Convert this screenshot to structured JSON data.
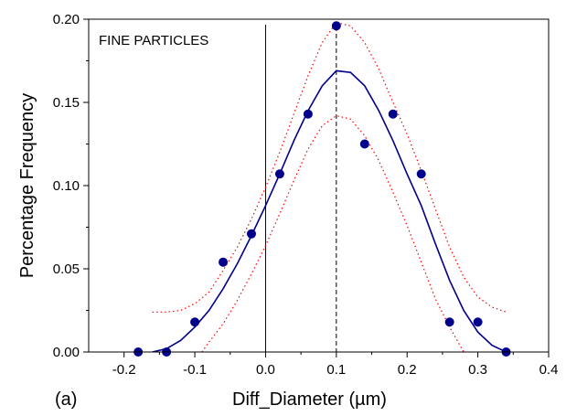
{
  "chart_data": {
    "type": "scatter",
    "panel_label": "(a)",
    "annotation": "FINE PARTICLES",
    "xlabel": "Diff_Diameter (µm)",
    "ylabel": "Percentage Frequency",
    "xlim": [
      -0.25,
      0.4
    ],
    "ylim": [
      0.0,
      0.2
    ],
    "x_ticks": [
      -0.2,
      -0.1,
      0.0,
      0.1,
      0.2,
      0.3,
      0.4
    ],
    "x_tick_labels": [
      "-0.2",
      "-0.1",
      "0.0",
      "0.1",
      "0.2",
      "0.3",
      "0.4"
    ],
    "y_ticks": [
      0.0,
      0.05,
      0.1,
      0.15,
      0.2
    ],
    "y_tick_labels": [
      "0.00",
      "0.05",
      "0.10",
      "0.15",
      "0.20"
    ],
    "grid": false,
    "colors": {
      "points": "#00008b",
      "fit": "#00008b",
      "band": "#ff0000"
    },
    "reference_lines": [
      {
        "x": 0.0,
        "style": "solid"
      },
      {
        "x": 0.1,
        "style": "dashed"
      }
    ],
    "points": {
      "x": [
        -0.18,
        -0.14,
        -0.1,
        -0.06,
        -0.02,
        0.02,
        0.06,
        0.1,
        0.14,
        0.18,
        0.22,
        0.26,
        0.3,
        0.34
      ],
      "y": [
        0.0,
        0.0,
        0.018,
        0.054,
        0.071,
        0.107,
        0.143,
        0.196,
        0.125,
        0.143,
        0.107,
        0.018,
        0.018,
        0.0
      ]
    },
    "fit_curve": {
      "x": [
        -0.16,
        -0.14,
        -0.12,
        -0.1,
        -0.08,
        -0.06,
        -0.04,
        -0.02,
        0.0,
        0.02,
        0.04,
        0.06,
        0.08,
        0.1,
        0.12,
        0.14,
        0.16,
        0.18,
        0.2,
        0.22,
        0.24,
        0.26,
        0.28,
        0.3,
        0.32,
        0.34
      ],
      "y": [
        0.0,
        0.002,
        0.007,
        0.015,
        0.025,
        0.038,
        0.053,
        0.07,
        0.088,
        0.107,
        0.127,
        0.145,
        0.16,
        0.169,
        0.168,
        0.16,
        0.145,
        0.127,
        0.107,
        0.088,
        0.065,
        0.043,
        0.025,
        0.012,
        0.004,
        0.0
      ]
    },
    "upper_band": {
      "x": [
        -0.16,
        -0.14,
        -0.12,
        -0.1,
        -0.08,
        -0.06,
        -0.04,
        -0.02,
        0.0,
        0.02,
        0.04,
        0.06,
        0.08,
        0.1,
        0.12,
        0.14,
        0.16,
        0.18,
        0.2,
        0.22,
        0.24,
        0.26,
        0.28,
        0.3,
        0.32,
        0.34
      ],
      "y": [
        0.024,
        0.024,
        0.025,
        0.029,
        0.036,
        0.049,
        0.063,
        0.08,
        0.099,
        0.12,
        0.143,
        0.166,
        0.186,
        0.198,
        0.196,
        0.186,
        0.17,
        0.15,
        0.131,
        0.109,
        0.086,
        0.063,
        0.045,
        0.033,
        0.027,
        0.024
      ]
    },
    "lower_band": {
      "x": [
        -0.09,
        -0.08,
        -0.06,
        -0.04,
        -0.02,
        0.0,
        0.02,
        0.04,
        0.06,
        0.08,
        0.1,
        0.12,
        0.14,
        0.16,
        0.18,
        0.2,
        0.22,
        0.24,
        0.26,
        0.28
      ],
      "y": [
        0.0,
        0.006,
        0.017,
        0.031,
        0.047,
        0.064,
        0.083,
        0.103,
        0.122,
        0.136,
        0.142,
        0.14,
        0.13,
        0.115,
        0.096,
        0.076,
        0.054,
        0.032,
        0.015,
        0.0
      ]
    }
  }
}
